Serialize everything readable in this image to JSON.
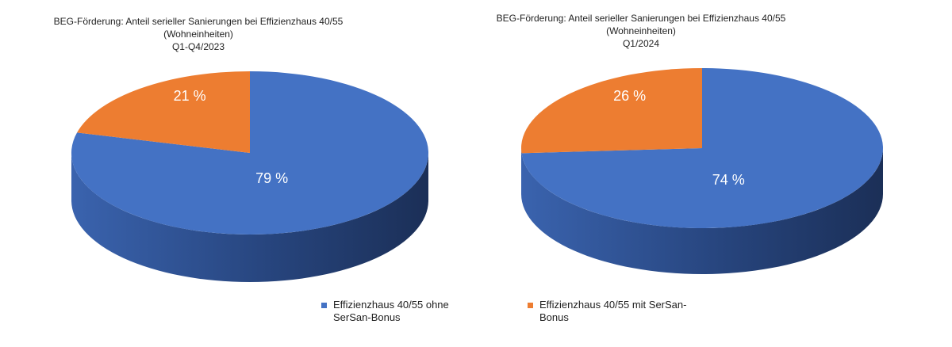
{
  "colors": {
    "blue": "#4472C4",
    "orange": "#ED7D31",
    "blue_side": "#2E4F8F",
    "orange_side": "#A8561F"
  },
  "chart_data": [
    {
      "type": "pie",
      "title_lines": [
        "BEG-Förderung: Anteil serieller Sanierungen bei Effizienzhaus 40/55",
        "(Wohneinheiten)",
        "Q1-Q4/2023"
      ],
      "slices": [
        {
          "name": "Effizienzhaus 40/55 ohne SerSan-Bonus",
          "value": 79,
          "label": "79 %",
          "color": "#4472C4"
        },
        {
          "name": "Effizienzhaus 40/55 mit SerSan-Bonus",
          "value": 21,
          "label": "21 %",
          "color": "#ED7D31"
        }
      ]
    },
    {
      "type": "pie",
      "title_lines": [
        "BEG-Förderung: Anteil serieller Sanierungen bei Effizienzhaus 40/55",
        "(Wohneinheiten)",
        "Q1/2024"
      ],
      "slices": [
        {
          "name": "Effizienzhaus 40/55 ohne SerSan-Bonus",
          "value": 74,
          "label": "74 %",
          "color": "#4472C4"
        },
        {
          "name": "Effizienzhaus 40/55 mit SerSan-Bonus",
          "value": 26,
          "label": "26 %",
          "color": "#ED7D31"
        }
      ]
    }
  ],
  "legend": [
    {
      "label": "Effizienzhaus 40/55 ohne SerSan-Bonus",
      "color": "#4472C4"
    },
    {
      "label": "Effizienzhaus 40/55 mit SerSan-Bonus",
      "color": "#ED7D31"
    }
  ]
}
